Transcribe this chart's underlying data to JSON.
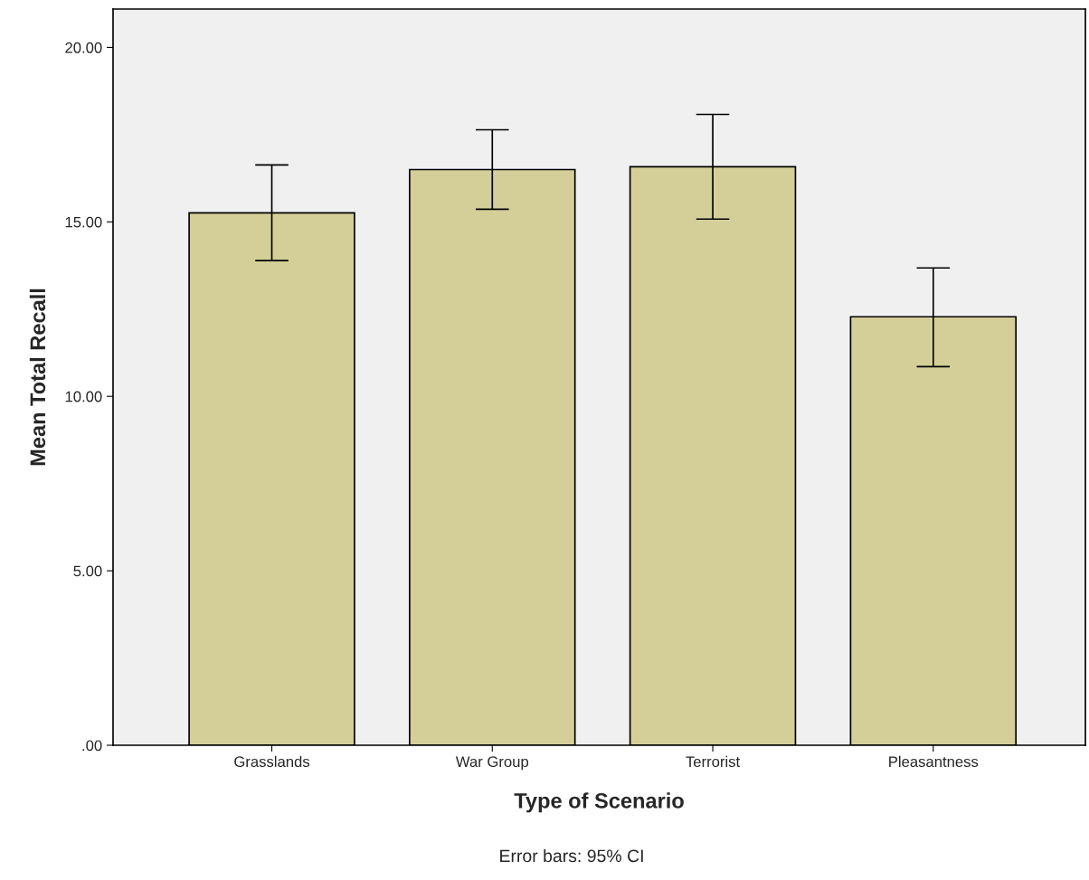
{
  "chart_data": {
    "type": "bar",
    "xlabel": "Type of Scenario",
    "ylabel": "Mean Total Recall",
    "categories": [
      "Grasslands",
      "War Group",
      "Terrorist",
      "Pleasantness"
    ],
    "values": [
      15.26,
      16.5,
      16.58,
      12.28
    ],
    "errors": [
      [
        13.89,
        16.63
      ],
      [
        15.36,
        17.64
      ],
      [
        15.08,
        18.08
      ],
      [
        10.85,
        13.68
      ]
    ],
    "color": "#d4cf98",
    "ylim": [
      0,
      21.1
    ],
    "yticks": [
      {
        "value": 0,
        "label": ".00"
      },
      {
        "value": 5,
        "label": "5.00"
      },
      {
        "value": 10,
        "label": "10.00"
      },
      {
        "value": 15,
        "label": "15.00"
      },
      {
        "value": 20,
        "label": "20.00"
      }
    ],
    "grid": false,
    "annotations": [
      "Error bars: 95% CI"
    ]
  }
}
